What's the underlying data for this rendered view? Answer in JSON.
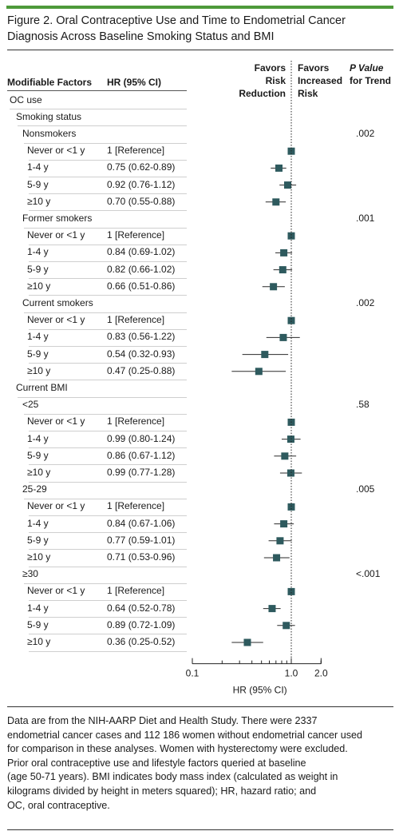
{
  "figure": {
    "title_line1": "Figure 2. Oral Contraceptive Use and Time to Endometrial Cancer",
    "title_line2": "Diagnosis Across Baseline Smoking Status and BMI"
  },
  "headers": {
    "factors": "Modifiable Factors",
    "hr": "HR (95% CI)",
    "favors_reduction": [
      "Favors",
      "Risk",
      "Reduction"
    ],
    "favors_increased": [
      "Favors",
      "Increased",
      "Risk"
    ],
    "pvalue": [
      "P Value",
      "for Trend"
    ]
  },
  "rows": [
    {
      "label": "OC use",
      "level": 0
    },
    {
      "label": "Smoking status",
      "level": 1
    },
    {
      "label": "Nonsmokers",
      "level": 2,
      "p": ".002"
    },
    {
      "label": "Never or <1 y",
      "level": 3,
      "hr_text": "1 [Reference]",
      "hr": 1.0
    },
    {
      "label": "1-4 y",
      "level": 3,
      "hr_text": "0.75 (0.62-0.89)",
      "hr": 0.75,
      "lo": 0.62,
      "hi": 0.89
    },
    {
      "label": "5-9 y",
      "level": 3,
      "hr_text": "0.92 (0.76-1.12)",
      "hr": 0.92,
      "lo": 0.76,
      "hi": 1.12
    },
    {
      "label": "≥10 y",
      "level": 3,
      "hr_text": "0.70 (0.55-0.88)",
      "hr": 0.7,
      "lo": 0.55,
      "hi": 0.88
    },
    {
      "label": "Former smokers",
      "level": 2,
      "p": ".001"
    },
    {
      "label": "Never or <1 y",
      "level": 3,
      "hr_text": "1 [Reference]",
      "hr": 1.0
    },
    {
      "label": "1-4 y",
      "level": 3,
      "hr_text": "0.84 (0.69-1.02)",
      "hr": 0.84,
      "lo": 0.69,
      "hi": 1.02
    },
    {
      "label": "5-9 y",
      "level": 3,
      "hr_text": "0.82 (0.66-1.02)",
      "hr": 0.82,
      "lo": 0.66,
      "hi": 1.02
    },
    {
      "label": "≥10 y",
      "level": 3,
      "hr_text": "0.66 (0.51-0.86)",
      "hr": 0.66,
      "lo": 0.51,
      "hi": 0.86
    },
    {
      "label": "Current smokers",
      "level": 2,
      "p": ".002"
    },
    {
      "label": "Never or <1 y",
      "level": 3,
      "hr_text": "1 [Reference]",
      "hr": 1.0
    },
    {
      "label": "1-4 y",
      "level": 3,
      "hr_text": "0.83 (0.56-1.22)",
      "hr": 0.83,
      "lo": 0.56,
      "hi": 1.22
    },
    {
      "label": "5-9 y",
      "level": 3,
      "hr_text": "0.54 (0.32-0.93)",
      "hr": 0.54,
      "lo": 0.32,
      "hi": 0.93
    },
    {
      "label": "≥10 y",
      "level": 3,
      "hr_text": "0.47 (0.25-0.88)",
      "hr": 0.47,
      "lo": 0.25,
      "hi": 0.88
    },
    {
      "label": "Current BMI",
      "level": 1
    },
    {
      "label": "<25",
      "level": 2,
      "p": ".58"
    },
    {
      "label": "Never or <1 y",
      "level": 3,
      "hr_text": "1 [Reference]",
      "hr": 1.0
    },
    {
      "label": "1-4 y",
      "level": 3,
      "hr_text": "0.99 (0.80-1.24)",
      "hr": 0.99,
      "lo": 0.8,
      "hi": 1.24
    },
    {
      "label": "5-9 y",
      "level": 3,
      "hr_text": "0.86 (0.67-1.12)",
      "hr": 0.86,
      "lo": 0.67,
      "hi": 1.12
    },
    {
      "label": "≥10 y",
      "level": 3,
      "hr_text": "0.99 (0.77-1.28)",
      "hr": 0.99,
      "lo": 0.77,
      "hi": 1.28
    },
    {
      "label": "25-29",
      "level": 2,
      "p": ".005"
    },
    {
      "label": "Never or <1 y",
      "level": 3,
      "hr_text": "1 [Reference]",
      "hr": 1.0
    },
    {
      "label": "1-4 y",
      "level": 3,
      "hr_text": "0.84 (0.67-1.06)",
      "hr": 0.84,
      "lo": 0.67,
      "hi": 1.06
    },
    {
      "label": "5-9 y",
      "level": 3,
      "hr_text": "0.77 (0.59-1.01)",
      "hr": 0.77,
      "lo": 0.59,
      "hi": 1.01
    },
    {
      "label": "≥10 y",
      "level": 3,
      "hr_text": "0.71 (0.53-0.96)",
      "hr": 0.71,
      "lo": 0.53,
      "hi": 0.96
    },
    {
      "label": "≥30",
      "level": 2,
      "p": "<.001"
    },
    {
      "label": "Never or <1 y",
      "level": 3,
      "hr_text": "1 [Reference]",
      "hr": 1.0
    },
    {
      "label": "1-4 y",
      "level": 3,
      "hr_text": "0.64 (0.52-0.78)",
      "hr": 0.64,
      "lo": 0.52,
      "hi": 0.78
    },
    {
      "label": "5-9 y",
      "level": 3,
      "hr_text": "0.89 (0.72-1.09)",
      "hr": 0.89,
      "lo": 0.72,
      "hi": 1.09
    },
    {
      "label": "≥10 y",
      "level": 3,
      "hr_text": "0.36 (0.25-0.52)",
      "hr": 0.36,
      "lo": 0.25,
      "hi": 0.52
    }
  ],
  "chart_data": {
    "type": "forest",
    "xlabel": "HR (95% CI)",
    "xscale": "log",
    "xlim": [
      0.1,
      2.0
    ],
    "xticks": [
      0.1,
      1.0,
      2.0
    ],
    "xtick_labels": [
      "0.1",
      "1.0",
      "2.0"
    ],
    "reference_line": 1.0,
    "marker_color": "#2e5a5e"
  },
  "footnote": {
    "lines": [
      "Data are from the NIH-AARP Diet and Health Study. There were 2337",
      "endometrial cancer cases and 112 186 women without endometrial cancer used",
      "for comparison in these analyses. Women with hysterectomy were excluded.",
      "Prior oral contraceptive use and lifestyle factors queried at baseline",
      "(age 50-71 years). BMI indicates body mass index (calculated as weight in",
      "kilograms divided by height in meters squared); HR, hazard ratio; and",
      "OC, oral contraceptive."
    ]
  }
}
